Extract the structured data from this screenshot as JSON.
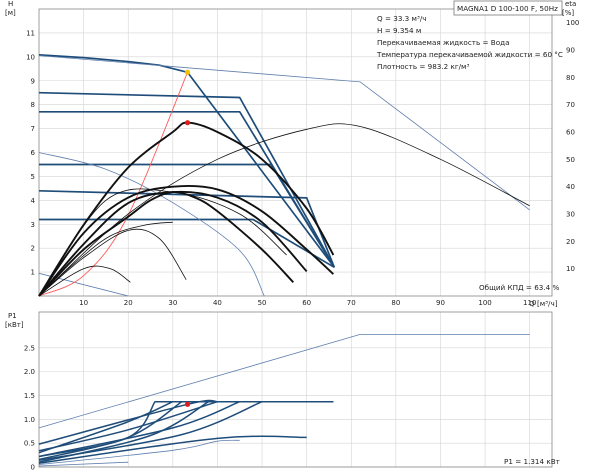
{
  "chart_data": [
    {
      "id": "qh",
      "type": "line",
      "title": "MAGNA1 D 100-100 F, 50Hz",
      "ylabel_top": "H",
      "ylabel_unit": "[м]",
      "y2label_top": "eta",
      "y2label_unit": "[%]",
      "xlabel": "Q [м³/ч]",
      "xlim": [
        0,
        115
      ],
      "ylim": [
        0,
        12
      ],
      "y2lim": [
        0,
        105
      ],
      "x_ticks": [
        10,
        20,
        30,
        40,
        50,
        60,
        70,
        80,
        90,
        100,
        110
      ],
      "y_ticks": [
        1,
        2,
        3,
        4,
        5,
        6,
        7,
        8,
        9,
        10,
        11
      ],
      "y2_ticks": [
        10,
        20,
        30,
        40,
        50,
        60,
        70,
        80,
        90,
        100
      ],
      "grid": true,
      "info_lines": [
        "Q = 33.3 м³/ч",
        "H = 9.354 м",
        "Перекачиваемая жидкость = Вода",
        "Температура перекачиваемой жидкости = 60 °C",
        "Плотность = 983.2 кг/м³"
      ],
      "efficiency_note": "Общий КПД = 63.4 %",
      "operating_point": {
        "q": 33.3,
        "h": 9.354
      },
      "efficiency_point": {
        "q": 33.3,
        "eta": 63.4
      },
      "series": [
        {
          "role": "head",
          "style": "main",
          "x": [
            0,
            10,
            20,
            27,
            33.3,
            66.2
          ],
          "y": [
            10.08,
            9.97,
            9.8,
            9.65,
            9.354,
            1.2
          ]
        },
        {
          "role": "head",
          "style": "thin",
          "x": [
            0,
            72,
            110
          ],
          "y": [
            10.05,
            8.95,
            3.6
          ]
        },
        {
          "role": "head",
          "style": "bold",
          "x": [
            0,
            45,
            66.2
          ],
          "y": [
            8.5,
            8.3,
            1.2
          ]
        },
        {
          "role": "head",
          "style": "bold",
          "x": [
            0,
            45,
            66.2
          ],
          "y": [
            7.7,
            7.7,
            1.2
          ]
        },
        {
          "role": "head",
          "style": "bold",
          "x": [
            0,
            52,
            66.2
          ],
          "y": [
            5.5,
            5.5,
            1.2
          ]
        },
        {
          "role": "head",
          "style": "bold",
          "x": [
            0,
            60,
            66.2
          ],
          "y": [
            4.4,
            4.1,
            1.2
          ]
        },
        {
          "role": "head",
          "style": "bold",
          "x": [
            0,
            48,
            66.2
          ],
          "y": [
            3.2,
            3.2,
            1.2
          ]
        },
        {
          "role": "head",
          "style": "thin",
          "x": [
            0,
            15,
            30,
            45,
            50.5
          ],
          "y": [
            6.0,
            5.3,
            3.9,
            1.9,
            0
          ]
        },
        {
          "role": "head",
          "style": "thin",
          "x": [
            0,
            20
          ],
          "y": [
            0.95,
            0
          ]
        },
        {
          "role": "system",
          "style": "red",
          "x": [
            0,
            10,
            20,
            33.3
          ],
          "y": [
            0,
            0.85,
            3.38,
            9.354
          ]
        },
        {
          "role": "efficiency",
          "style": "thin",
          "x": [
            0,
            20,
            40,
            60,
            72,
            90,
            110
          ],
          "y": [
            0,
            30,
            50,
            61,
            62,
            50,
            33
          ]
        },
        {
          "role": "efficiency",
          "style": "thin",
          "x": [
            0,
            15,
            30,
            45,
            55.5
          ],
          "y": [
            0,
            35,
            38,
            30,
            15
          ]
        },
        {
          "role": "efficiency",
          "style": "thin",
          "x": [
            0,
            8,
            16,
            24,
            30
          ],
          "y": [
            0,
            12,
            22,
            26,
            27
          ]
        },
        {
          "role": "efficiency",
          "style": "thin",
          "x": [
            0,
            10,
            20,
            27,
            33
          ],
          "y": [
            0,
            14,
            24,
            21,
            6
          ]
        },
        {
          "role": "efficiency",
          "style": "thin",
          "x": [
            0,
            10,
            16,
            20.5
          ],
          "y": [
            0,
            10,
            10,
            5
          ]
        },
        {
          "role": "efficiency",
          "style": "bold",
          "x": [
            0,
            10,
            20,
            25,
            30,
            35,
            40,
            50,
            57
          ],
          "y": [
            0,
            17,
            29,
            35,
            38,
            36,
            31,
            17,
            5
          ]
        },
        {
          "role": "efficiency",
          "style": "bold",
          "x": [
            0,
            10,
            20,
            30,
            40,
            50,
            60
          ],
          "y": [
            0,
            19,
            34,
            38,
            36,
            27,
            9
          ]
        },
        {
          "role": "efficiency",
          "style": "bold",
          "x": [
            0,
            10,
            20,
            30,
            40,
            50,
            60,
            66
          ],
          "y": [
            0,
            23,
            36,
            40,
            39,
            31,
            17,
            8
          ]
        },
        {
          "role": "efficiency",
          "style": "bold",
          "x": [
            0,
            10,
            20,
            30,
            33.3,
            40,
            50,
            60,
            66
          ],
          "y": [
            0,
            26,
            47,
            60,
            63.4,
            60,
            50,
            32,
            15
          ]
        }
      ]
    },
    {
      "id": "power",
      "type": "line",
      "ylabel_top": "P1",
      "ylabel_unit": "[кВт]",
      "xlim": [
        0,
        115
      ],
      "ylim": [
        0,
        3.25
      ],
      "y_ticks": [
        0,
        0.5,
        1.0,
        1.5,
        2.0,
        2.5
      ],
      "y_tick_labels": [
        "0",
        "0.5",
        "1.0",
        "1.5",
        "2.0",
        "2.5"
      ],
      "power_note": "P1 = 1.314 кВт",
      "operating_point": {
        "q": 33.3,
        "p": 1.314
      },
      "series": [
        {
          "role": "power",
          "style": "thin",
          "x": [
            0,
            72,
            110
          ],
          "y": [
            0.82,
            2.78,
            2.78
          ]
        },
        {
          "role": "power",
          "style": "bold",
          "x": [
            0,
            33.3,
            40,
            66
          ],
          "y": [
            0.48,
            1.314,
            1.37,
            1.37
          ]
        },
        {
          "role": "power",
          "style": "bold",
          "x": [
            0,
            20,
            40,
            66
          ],
          "y": [
            0.34,
            0.78,
            1.37,
            1.37
          ]
        },
        {
          "role": "power",
          "style": "bold",
          "x": [
            0,
            30,
            45,
            66
          ],
          "y": [
            0.22,
            0.82,
            1.37,
            1.37
          ]
        },
        {
          "role": "power",
          "style": "bold",
          "x": [
            0,
            32,
            50,
            66
          ],
          "y": [
            0.14,
            0.68,
            1.37,
            1.37
          ]
        },
        {
          "role": "power",
          "style": "bold",
          "x": [
            0,
            40,
            60
          ],
          "y": [
            0.08,
            0.6,
            0.62
          ]
        },
        {
          "role": "power",
          "style": "thin",
          "x": [
            0,
            30,
            40,
            45
          ],
          "y": [
            0.05,
            0.35,
            0.54,
            0.56
          ]
        },
        {
          "role": "power",
          "style": "thin",
          "x": [
            0,
            20
          ],
          "y": [
            0.02,
            0.1
          ]
        },
        {
          "role": "power",
          "style": "bold",
          "x": [
            0,
            20,
            26,
            66
          ],
          "y": [
            0.22,
            0.62,
            1.37,
            1.37
          ]
        },
        {
          "role": "power",
          "style": "bold",
          "x": [
            0,
            20,
            32,
            66
          ],
          "y": [
            0.16,
            0.62,
            1.37,
            1.37
          ]
        },
        {
          "role": "power",
          "style": "bold",
          "x": [
            0,
            25,
            38,
            66
          ],
          "y": [
            0.1,
            0.66,
            1.37,
            1.37
          ]
        },
        {
          "role": "power",
          "style": "bold",
          "x": [
            0,
            20,
            30,
            66
          ],
          "y": [
            0.3,
            0.95,
            1.37,
            1.37
          ]
        }
      ]
    }
  ],
  "colors": {
    "grid": "#d4d4d4",
    "axis": "#888888",
    "bold_blue": "#1f4d7a",
    "thin_blue": "#5f7fae",
    "curve_black": "#111111",
    "system_red": "#ff5a5a",
    "operating_point": "#e21a1a",
    "head_point": "#f2c200"
  }
}
